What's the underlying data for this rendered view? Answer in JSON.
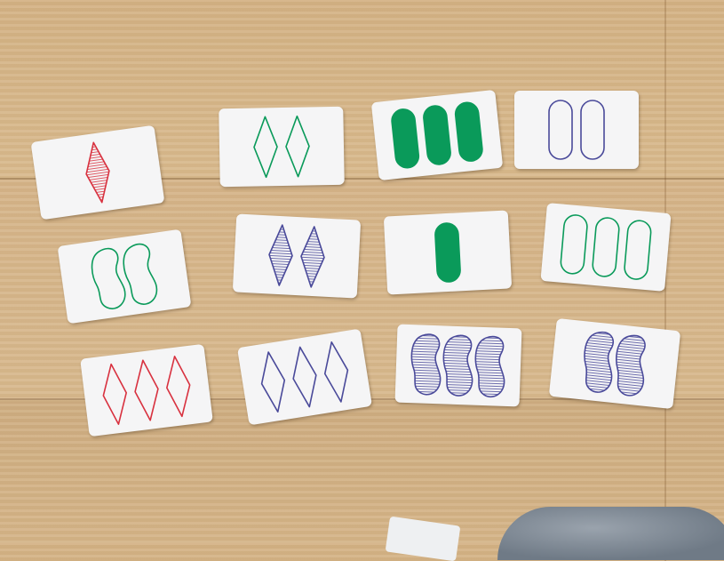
{
  "game": "Set card game",
  "colors": {
    "red": "#d8313f",
    "green": "#0a9a5a",
    "purple": "#4a4a9a"
  },
  "cards": [
    {
      "id": "c1",
      "number": 1,
      "shape": "diamond",
      "color": "red",
      "shading": "striped"
    },
    {
      "id": "c2",
      "number": 2,
      "shape": "diamond",
      "color": "green",
      "shading": "open"
    },
    {
      "id": "c3",
      "number": 3,
      "shape": "oval",
      "color": "green",
      "shading": "solid"
    },
    {
      "id": "c4",
      "number": 2,
      "shape": "oval",
      "color": "purple",
      "shading": "open"
    },
    {
      "id": "c5",
      "number": 2,
      "shape": "squiggle",
      "color": "green",
      "shading": "open"
    },
    {
      "id": "c6",
      "number": 2,
      "shape": "diamond",
      "color": "purple",
      "shading": "striped"
    },
    {
      "id": "c7",
      "number": 1,
      "shape": "oval",
      "color": "green",
      "shading": "solid"
    },
    {
      "id": "c8",
      "number": 3,
      "shape": "oval",
      "color": "green",
      "shading": "open"
    },
    {
      "id": "c9",
      "number": 3,
      "shape": "diamond",
      "color": "red",
      "shading": "open"
    },
    {
      "id": "c10",
      "number": 3,
      "shape": "diamond",
      "color": "purple",
      "shading": "open"
    },
    {
      "id": "c11",
      "number": 3,
      "shape": "squiggle",
      "color": "purple",
      "shading": "striped"
    },
    {
      "id": "c12",
      "number": 2,
      "shape": "squiggle",
      "color": "purple",
      "shading": "striped"
    }
  ]
}
